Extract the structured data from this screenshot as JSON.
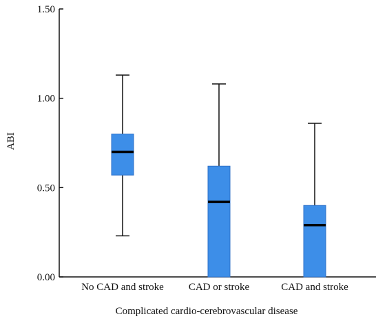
{
  "chart_data": {
    "type": "boxplot",
    "title": "",
    "xlabel": "Complicated cardio-cerebrovascular disease",
    "ylabel": "ABI",
    "ylim": [
      0,
      1.5
    ],
    "yticks": [
      "0.00",
      "0.50",
      "1.00",
      "1.50"
    ],
    "ytick_values": [
      0,
      0.5,
      1.0,
      1.5
    ],
    "grid": false,
    "box_color": "#3d8ee8",
    "categories": [
      "No CAD and stroke",
      "CAD or stroke",
      "CAD and stroke"
    ],
    "boxes": [
      {
        "category": "No CAD and stroke",
        "min": 0.23,
        "q1": 0.57,
        "median": 0.7,
        "q3": 0.8,
        "max": 1.13
      },
      {
        "category": "CAD or stroke",
        "min": 0.0,
        "q1": 0.0,
        "median": 0.42,
        "q3": 0.62,
        "max": 1.08
      },
      {
        "category": "CAD and stroke",
        "min": 0.0,
        "q1": 0.0,
        "median": 0.29,
        "q3": 0.4,
        "max": 0.86
      }
    ]
  }
}
